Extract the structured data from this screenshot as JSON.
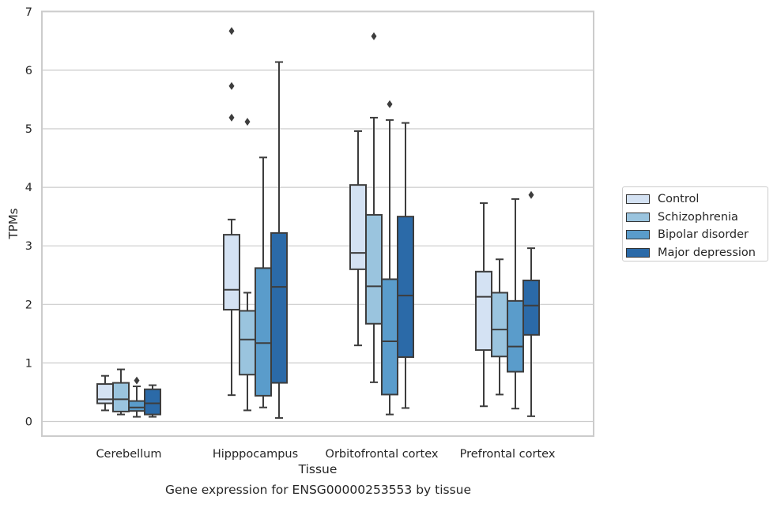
{
  "chart_data": {
    "type": "box",
    "caption": "Gene expression for ENSG00000253553 by tissue",
    "xlabel": "Tissue",
    "ylabel": "TPMs",
    "ylim": [
      -0.25,
      7.0
    ],
    "yticks": [
      0,
      1,
      2,
      3,
      4,
      5,
      6,
      7
    ],
    "grid": "horizontal",
    "legend_position": "right",
    "categories": [
      "Cerebellum",
      "Hipppocampus",
      "Orbitofrontal cortex",
      "Prefrontal cortex"
    ],
    "series": [
      {
        "name": "Control",
        "color": "#d4e2f3",
        "boxes": [
          {
            "whisker_low": 0.19,
            "q1": 0.31,
            "median": 0.38,
            "q3": 0.64,
            "whisker_high": 0.78,
            "outliers": []
          },
          {
            "whisker_low": 0.45,
            "q1": 1.91,
            "median": 2.25,
            "q3": 3.19,
            "whisker_high": 3.45,
            "outliers": [
              5.19,
              5.73,
              6.67
            ]
          },
          {
            "whisker_low": 1.3,
            "q1": 2.6,
            "median": 2.88,
            "q3": 4.04,
            "whisker_high": 4.96,
            "outliers": []
          },
          {
            "whisker_low": 0.26,
            "q1": 1.22,
            "median": 2.13,
            "q3": 2.56,
            "whisker_high": 3.73,
            "outliers": []
          }
        ]
      },
      {
        "name": "Schizophrenia",
        "color": "#9ac4de",
        "boxes": [
          {
            "whisker_low": 0.12,
            "q1": 0.17,
            "median": 0.38,
            "q3": 0.66,
            "whisker_high": 0.89,
            "outliers": []
          },
          {
            "whisker_low": 0.19,
            "q1": 0.8,
            "median": 1.4,
            "q3": 1.89,
            "whisker_high": 2.2,
            "outliers": [
              5.12
            ]
          },
          {
            "whisker_low": 0.67,
            "q1": 1.67,
            "median": 2.31,
            "q3": 3.53,
            "whisker_high": 5.19,
            "outliers": [
              6.58
            ]
          },
          {
            "whisker_low": 0.46,
            "q1": 1.11,
            "median": 1.57,
            "q3": 2.2,
            "whisker_high": 2.77,
            "outliers": []
          }
        ]
      },
      {
        "name": "Bipolar disorder",
        "color": "#5a9ccb",
        "boxes": [
          {
            "whisker_low": 0.08,
            "q1": 0.18,
            "median": 0.24,
            "q3": 0.35,
            "whisker_high": 0.6,
            "outliers": [
              0.7
            ]
          },
          {
            "whisker_low": 0.24,
            "q1": 0.44,
            "median": 1.34,
            "q3": 2.62,
            "whisker_high": 4.51,
            "outliers": []
          },
          {
            "whisker_low": 0.12,
            "q1": 0.46,
            "median": 1.37,
            "q3": 2.43,
            "whisker_high": 5.15,
            "outliers": [
              5.42
            ]
          },
          {
            "whisker_low": 0.22,
            "q1": 0.85,
            "median": 1.28,
            "q3": 2.06,
            "whisker_high": 3.8,
            "outliers": []
          }
        ]
      },
      {
        "name": "Major depression",
        "color": "#2b6aa8",
        "boxes": [
          {
            "whisker_low": 0.08,
            "q1": 0.12,
            "median": 0.31,
            "q3": 0.55,
            "whisker_high": 0.62,
            "outliers": []
          },
          {
            "whisker_low": 0.06,
            "q1": 0.66,
            "median": 2.3,
            "q3": 3.22,
            "whisker_high": 6.14,
            "outliers": []
          },
          {
            "whisker_low": 0.23,
            "q1": 1.1,
            "median": 2.15,
            "q3": 3.5,
            "whisker_high": 5.1,
            "outliers": []
          },
          {
            "whisker_low": 0.09,
            "q1": 1.48,
            "median": 1.98,
            "q3": 2.41,
            "whisker_high": 2.96,
            "outliers": [
              3.87
            ]
          }
        ]
      }
    ]
  }
}
